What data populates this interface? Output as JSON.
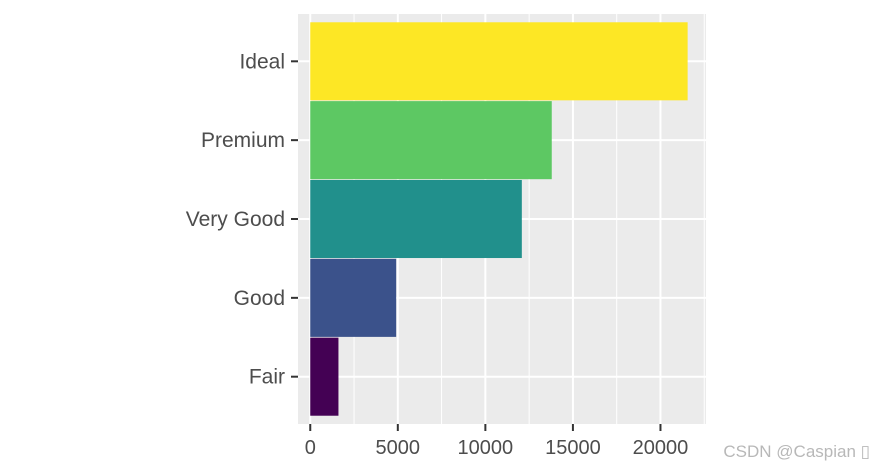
{
  "chart_data": {
    "type": "bar",
    "orientation": "horizontal",
    "categories": [
      "Fair",
      "Good",
      "Very Good",
      "Premium",
      "Ideal"
    ],
    "values": [
      1610,
      4906,
      12082,
      13791,
      21551
    ],
    "colors": [
      "#440154",
      "#3b528b",
      "#21908c",
      "#5dc863",
      "#fde725"
    ],
    "xlim": [
      -700,
      22600
    ],
    "xticks": [
      0,
      5000,
      10000,
      15000,
      20000
    ],
    "xtick_labels": [
      "0",
      "5000",
      "10000",
      "15000",
      "20000"
    ],
    "grid": true,
    "panel_background": "#ebebeb",
    "title": "",
    "xlabel": "",
    "ylabel": ""
  },
  "watermark": "CSDN @Caspian ▯"
}
